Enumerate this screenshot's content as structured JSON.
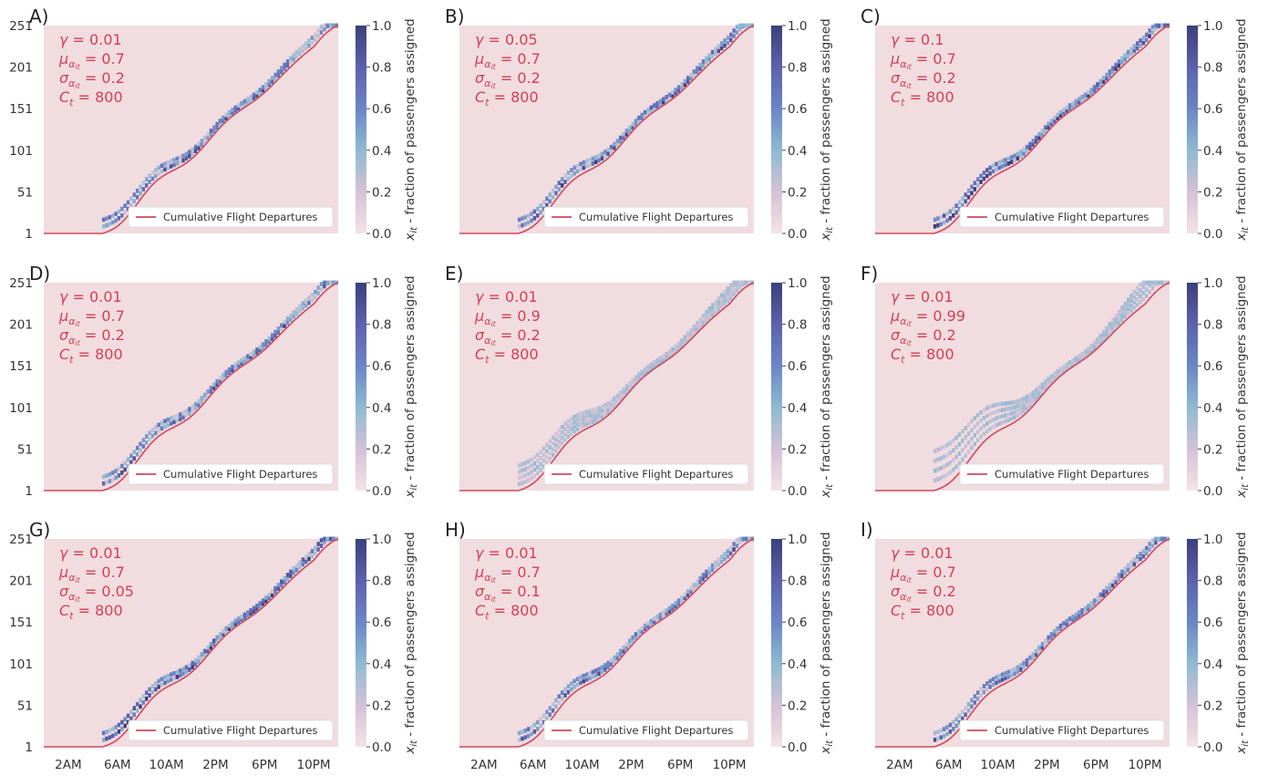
{
  "colors": {
    "background": "#f1dce0",
    "departures_line": "#cd4a5c",
    "annotation_text": "#d43f55",
    "tick_text": "#333333",
    "colormap": [
      "#f4e3e6",
      "#d3c2d6",
      "#8fbad2",
      "#6b86c5",
      "#5b62ad",
      "#3c3f7a"
    ]
  },
  "shared": {
    "y_ticks": [
      "1",
      "51",
      "101",
      "151",
      "201",
      "251"
    ],
    "x_ticks": [
      "2AM",
      "6AM",
      "10AM",
      "2PM",
      "6PM",
      "10PM"
    ],
    "colorbar_ticks": [
      "0.0",
      "0.2",
      "0.4",
      "0.6",
      "0.8",
      "1.0"
    ],
    "colorbar_label_var": "x",
    "colorbar_label_sub": "it",
    "colorbar_label_rest": " - fraction of passengers assigned",
    "legend_label": "Cumulative Flight Departures"
  },
  "chart_data": [
    {
      "panel": "A)",
      "type": "heatmap",
      "gamma": "0.01",
      "mu": "0.7",
      "sigma": "0.2",
      "C": "800",
      "colorbar_range": [
        0,
        1
      ],
      "legend_position": "lower-right"
    },
    {
      "panel": "B)",
      "type": "heatmap",
      "gamma": "0.05",
      "mu": "0.7",
      "sigma": "0.2",
      "C": "800",
      "colorbar_range": [
        0,
        1
      ],
      "legend_position": "lower-right"
    },
    {
      "panel": "C)",
      "type": "heatmap",
      "gamma": "0.1",
      "mu": "0.7",
      "sigma": "0.2",
      "C": "800",
      "colorbar_range": [
        0,
        1
      ],
      "legend_position": "lower-right"
    },
    {
      "panel": "D)",
      "type": "heatmap",
      "gamma": "0.01",
      "mu": "0.7",
      "sigma": "0.2",
      "C": "800",
      "colorbar_range": [
        0,
        1
      ],
      "legend_position": "lower-right"
    },
    {
      "panel": "E)",
      "type": "heatmap",
      "gamma": "0.01",
      "mu": "0.9",
      "sigma": "0.2",
      "C": "800",
      "colorbar_range": [
        0,
        1
      ],
      "legend_position": "lower-right"
    },
    {
      "panel": "F)",
      "type": "heatmap",
      "gamma": "0.01",
      "mu": "0.99",
      "sigma": "0.2",
      "C": "800",
      "colorbar_range": [
        0,
        1
      ],
      "legend_position": "lower-right"
    },
    {
      "panel": "G)",
      "type": "heatmap",
      "gamma": "0.01",
      "mu": "0.7",
      "sigma": "0.05",
      "C": "800",
      "colorbar_range": [
        0,
        1
      ],
      "legend_position": "lower-right"
    },
    {
      "panel": "H)",
      "type": "heatmap",
      "gamma": "0.01",
      "mu": "0.7",
      "sigma": "0.1",
      "C": "800",
      "colorbar_range": [
        0,
        1
      ],
      "legend_position": "lower-right"
    },
    {
      "panel": "I)",
      "type": "heatmap",
      "gamma": "0.01",
      "mu": "0.7",
      "sigma": "0.2",
      "C": "800",
      "colorbar_range": [
        0,
        1
      ],
      "legend_position": "lower-right"
    }
  ]
}
